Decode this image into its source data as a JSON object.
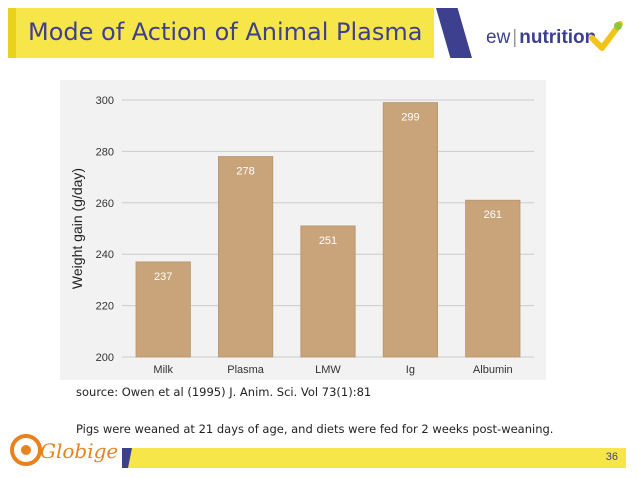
{
  "header": {
    "title": "Mode of Action of Animal Plasma",
    "logo_ew": "ew",
    "logo_brand": "nutrition"
  },
  "chart_data": {
    "type": "bar",
    "categories": [
      "Milk",
      "Plasma",
      "LMW",
      "Ig",
      "Albumin"
    ],
    "values": [
      237,
      278,
      251,
      299,
      261
    ],
    "data_labels": [
      "237",
      "278",
      "251",
      "299",
      "261"
    ],
    "ylabel": "Weight gain (g/day)",
    "xlabel": "",
    "ylim": [
      200,
      300
    ],
    "yticks": [
      200,
      220,
      240,
      260,
      280,
      300
    ],
    "grid": true,
    "legend": false,
    "bar_color": "#c9a47a"
  },
  "source_text": "source: Owen et al (1995) J. Anim. Sci. Vol 73(1):81",
  "note_text": "Pigs were weaned at 21 days of age, and diets were fed for 2 weeks post-weaning.",
  "footer": {
    "page_number": "36",
    "globigen_logo": "Globigen"
  },
  "colors": {
    "accent_yellow": "#f7e64a",
    "brand_navy": "#3d3f8f",
    "logo_orange": "#e8821e"
  }
}
